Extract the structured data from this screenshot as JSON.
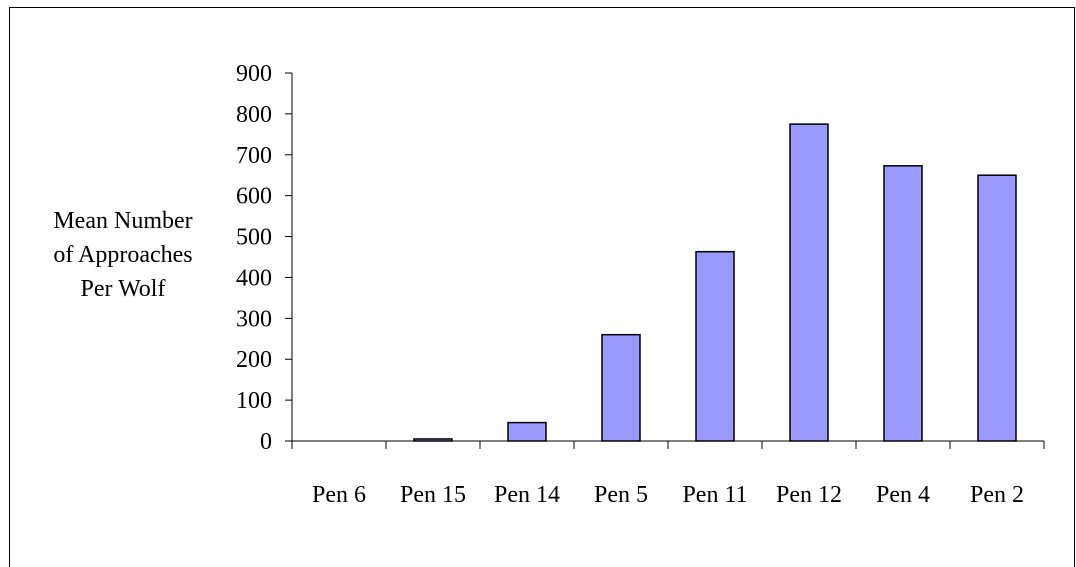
{
  "chart_data": {
    "type": "bar",
    "title": "",
    "xlabel": "",
    "ylabel_lines": [
      "Mean Number",
      "of Approaches",
      "Per Wolf"
    ],
    "categories": [
      "Pen 6",
      "Pen 15",
      "Pen 14",
      "Pen 5",
      "Pen 11",
      "Pen 12",
      "Pen 4",
      "Pen 2"
    ],
    "values": [
      0,
      5,
      45,
      260,
      463,
      775,
      673,
      650
    ],
    "ylim": [
      0,
      900
    ],
    "yticks": [
      0,
      100,
      200,
      300,
      400,
      500,
      600,
      700,
      800,
      900
    ],
    "grid": false,
    "legend": "none",
    "bar_color": "#9999ff",
    "bar_edge_color": "#000000"
  }
}
